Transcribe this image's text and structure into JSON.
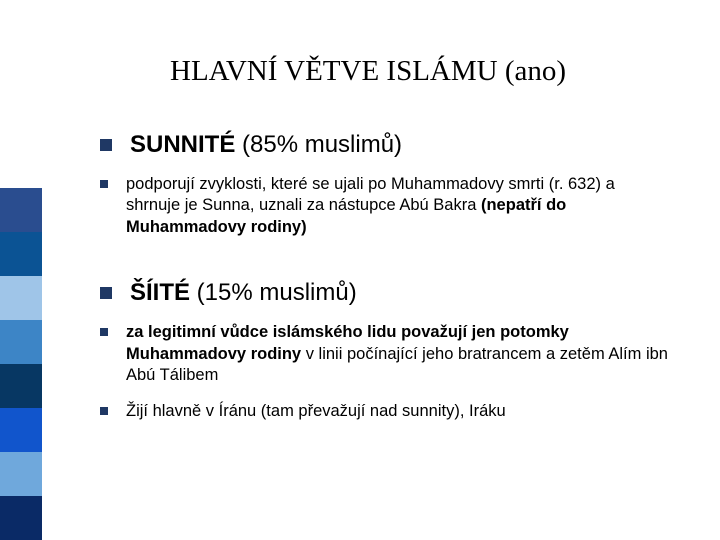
{
  "title": "HLAVNÍ VĚTVE ISLÁMU (ano)",
  "items": [
    {
      "size": "lg",
      "html": "<span class='bold'>SUNNITÉ</span> (85% muslimů)"
    },
    {
      "size": "sm",
      "html": "podporují zvyklosti, které se ujali po Muhammadovy smrti (r. 632) a shrnuje je Sunna, uznali za nástupce Abú Bakra <span class='bold'>(nepatří do Muhammadovy rodiny)</span>"
    },
    {
      "size": "gap"
    },
    {
      "size": "lg",
      "html": "<span class='bold'>ŠÍITÉ</span> (15% muslimů)"
    },
    {
      "size": "sm",
      "html": "<span class='bold'>za legitimní vůdce islámského lidu považují jen potomky Muhammadovy rodiny</span> v linii počínající jeho bratrancem a zetěm Alím ibn Abú Tálibem"
    },
    {
      "size": "sm",
      "html": "Žijí hlavně v Íránu (tam převažují nad sunnity), Iráku"
    }
  ],
  "sidebar_blocks": [
    {
      "height": 44,
      "color": "#0a2a66"
    },
    {
      "height": 44,
      "color": "#6fa8dc"
    },
    {
      "height": 44,
      "color": "#1155cc"
    },
    {
      "height": 44,
      "color": "#073763"
    },
    {
      "height": 44,
      "color": "#3d85c6"
    },
    {
      "height": 44,
      "color": "#9fc5e8"
    },
    {
      "height": 44,
      "color": "#0b5394"
    },
    {
      "height": 44,
      "color": "#2a4d8f"
    }
  ],
  "bullet_color": "#1f3864",
  "title_font": "Times New Roman",
  "body_font": "Arial"
}
